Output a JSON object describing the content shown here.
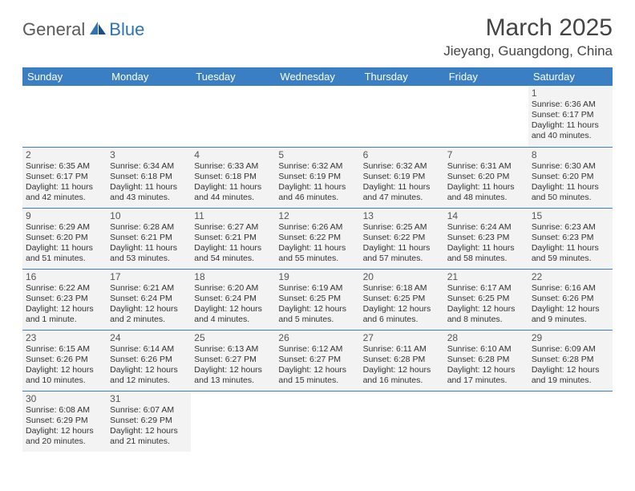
{
  "logo": {
    "general": "General",
    "blue": "Blue"
  },
  "title": "March 2025",
  "location": "Jieyang, Guangdong, China",
  "colors": {
    "header_bg": "#3a7fc4",
    "header_text": "#ffffff",
    "cell_bg": "#f3f3f3",
    "border": "#3a7fc4",
    "logo_gray": "#5a5a5a",
    "logo_blue": "#2e72b8"
  },
  "weekdays": [
    "Sunday",
    "Monday",
    "Tuesday",
    "Wednesday",
    "Thursday",
    "Friday",
    "Saturday"
  ],
  "weeks": [
    [
      null,
      null,
      null,
      null,
      null,
      null,
      {
        "n": "1",
        "sr": "Sunrise: 6:36 AM",
        "ss": "Sunset: 6:17 PM",
        "dl": "Daylight: 11 hours and 40 minutes."
      }
    ],
    [
      {
        "n": "2",
        "sr": "Sunrise: 6:35 AM",
        "ss": "Sunset: 6:17 PM",
        "dl": "Daylight: 11 hours and 42 minutes."
      },
      {
        "n": "3",
        "sr": "Sunrise: 6:34 AM",
        "ss": "Sunset: 6:18 PM",
        "dl": "Daylight: 11 hours and 43 minutes."
      },
      {
        "n": "4",
        "sr": "Sunrise: 6:33 AM",
        "ss": "Sunset: 6:18 PM",
        "dl": "Daylight: 11 hours and 44 minutes."
      },
      {
        "n": "5",
        "sr": "Sunrise: 6:32 AM",
        "ss": "Sunset: 6:19 PM",
        "dl": "Daylight: 11 hours and 46 minutes."
      },
      {
        "n": "6",
        "sr": "Sunrise: 6:32 AM",
        "ss": "Sunset: 6:19 PM",
        "dl": "Daylight: 11 hours and 47 minutes."
      },
      {
        "n": "7",
        "sr": "Sunrise: 6:31 AM",
        "ss": "Sunset: 6:20 PM",
        "dl": "Daylight: 11 hours and 48 minutes."
      },
      {
        "n": "8",
        "sr": "Sunrise: 6:30 AM",
        "ss": "Sunset: 6:20 PM",
        "dl": "Daylight: 11 hours and 50 minutes."
      }
    ],
    [
      {
        "n": "9",
        "sr": "Sunrise: 6:29 AM",
        "ss": "Sunset: 6:20 PM",
        "dl": "Daylight: 11 hours and 51 minutes."
      },
      {
        "n": "10",
        "sr": "Sunrise: 6:28 AM",
        "ss": "Sunset: 6:21 PM",
        "dl": "Daylight: 11 hours and 53 minutes."
      },
      {
        "n": "11",
        "sr": "Sunrise: 6:27 AM",
        "ss": "Sunset: 6:21 PM",
        "dl": "Daylight: 11 hours and 54 minutes."
      },
      {
        "n": "12",
        "sr": "Sunrise: 6:26 AM",
        "ss": "Sunset: 6:22 PM",
        "dl": "Daylight: 11 hours and 55 minutes."
      },
      {
        "n": "13",
        "sr": "Sunrise: 6:25 AM",
        "ss": "Sunset: 6:22 PM",
        "dl": "Daylight: 11 hours and 57 minutes."
      },
      {
        "n": "14",
        "sr": "Sunrise: 6:24 AM",
        "ss": "Sunset: 6:23 PM",
        "dl": "Daylight: 11 hours and 58 minutes."
      },
      {
        "n": "15",
        "sr": "Sunrise: 6:23 AM",
        "ss": "Sunset: 6:23 PM",
        "dl": "Daylight: 11 hours and 59 minutes."
      }
    ],
    [
      {
        "n": "16",
        "sr": "Sunrise: 6:22 AM",
        "ss": "Sunset: 6:23 PM",
        "dl": "Daylight: 12 hours and 1 minute."
      },
      {
        "n": "17",
        "sr": "Sunrise: 6:21 AM",
        "ss": "Sunset: 6:24 PM",
        "dl": "Daylight: 12 hours and 2 minutes."
      },
      {
        "n": "18",
        "sr": "Sunrise: 6:20 AM",
        "ss": "Sunset: 6:24 PM",
        "dl": "Daylight: 12 hours and 4 minutes."
      },
      {
        "n": "19",
        "sr": "Sunrise: 6:19 AM",
        "ss": "Sunset: 6:25 PM",
        "dl": "Daylight: 12 hours and 5 minutes."
      },
      {
        "n": "20",
        "sr": "Sunrise: 6:18 AM",
        "ss": "Sunset: 6:25 PM",
        "dl": "Daylight: 12 hours and 6 minutes."
      },
      {
        "n": "21",
        "sr": "Sunrise: 6:17 AM",
        "ss": "Sunset: 6:25 PM",
        "dl": "Daylight: 12 hours and 8 minutes."
      },
      {
        "n": "22",
        "sr": "Sunrise: 6:16 AM",
        "ss": "Sunset: 6:26 PM",
        "dl": "Daylight: 12 hours and 9 minutes."
      }
    ],
    [
      {
        "n": "23",
        "sr": "Sunrise: 6:15 AM",
        "ss": "Sunset: 6:26 PM",
        "dl": "Daylight: 12 hours and 10 minutes."
      },
      {
        "n": "24",
        "sr": "Sunrise: 6:14 AM",
        "ss": "Sunset: 6:26 PM",
        "dl": "Daylight: 12 hours and 12 minutes."
      },
      {
        "n": "25",
        "sr": "Sunrise: 6:13 AM",
        "ss": "Sunset: 6:27 PM",
        "dl": "Daylight: 12 hours and 13 minutes."
      },
      {
        "n": "26",
        "sr": "Sunrise: 6:12 AM",
        "ss": "Sunset: 6:27 PM",
        "dl": "Daylight: 12 hours and 15 minutes."
      },
      {
        "n": "27",
        "sr": "Sunrise: 6:11 AM",
        "ss": "Sunset: 6:28 PM",
        "dl": "Daylight: 12 hours and 16 minutes."
      },
      {
        "n": "28",
        "sr": "Sunrise: 6:10 AM",
        "ss": "Sunset: 6:28 PM",
        "dl": "Daylight: 12 hours and 17 minutes."
      },
      {
        "n": "29",
        "sr": "Sunrise: 6:09 AM",
        "ss": "Sunset: 6:28 PM",
        "dl": "Daylight: 12 hours and 19 minutes."
      }
    ],
    [
      {
        "n": "30",
        "sr": "Sunrise: 6:08 AM",
        "ss": "Sunset: 6:29 PM",
        "dl": "Daylight: 12 hours and 20 minutes."
      },
      {
        "n": "31",
        "sr": "Sunrise: 6:07 AM",
        "ss": "Sunset: 6:29 PM",
        "dl": "Daylight: 12 hours and 21 minutes."
      },
      null,
      null,
      null,
      null,
      null
    ]
  ]
}
